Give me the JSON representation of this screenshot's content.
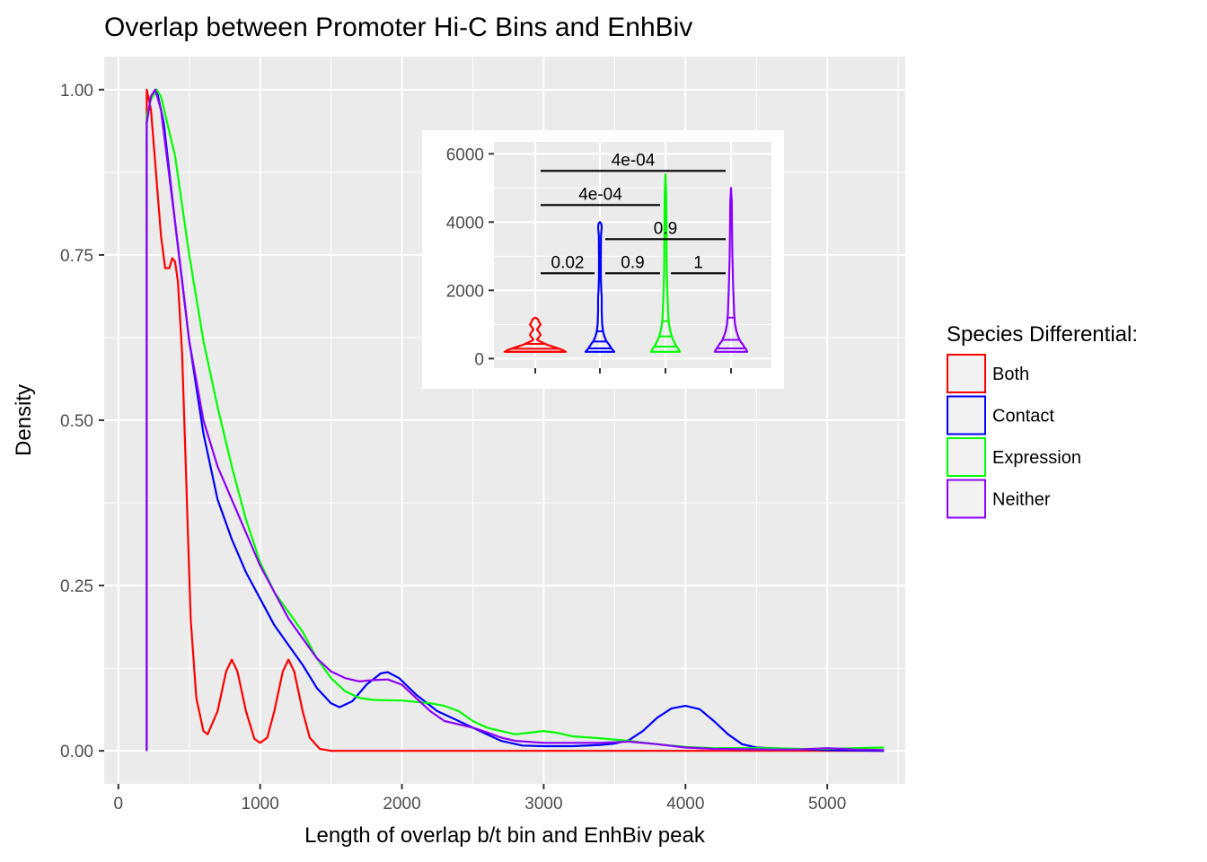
{
  "chart_data": [
    {
      "type": "line",
      "subtype": "density",
      "title": "Overlap between Promoter Hi-C Bins and EnhBiv",
      "xlabel": "Length of overlap b/t bin and EnhBiv peak",
      "ylabel": "Density",
      "xlim": [
        -100,
        5550
      ],
      "ylim": [
        -0.05,
        1.05
      ],
      "x_ticks": [
        0,
        1000,
        2000,
        3000,
        4000,
        5000
      ],
      "x_tick_labels": [
        "0",
        "1000",
        "2000",
        "3000",
        "4000",
        "5000"
      ],
      "y_ticks": [
        0,
        0.25,
        0.5,
        0.75,
        1.0
      ],
      "y_tick_labels": [
        "0.00",
        "0.25",
        "0.50",
        "0.75",
        "1.00"
      ],
      "grid": true,
      "legend": {
        "title": "Species Differential:",
        "placement": "right",
        "entries": [
          "Both",
          "Contact",
          "Expression",
          "Neither"
        ]
      },
      "series": [
        {
          "name": "Both",
          "color": "#ff0000",
          "points": [
            [
              200,
              0
            ],
            [
              200,
              1.0
            ],
            [
              230,
              0.97
            ],
            [
              300,
              0.78
            ],
            [
              330,
              0.73
            ],
            [
              360,
              0.73
            ],
            [
              380,
              0.745
            ],
            [
              400,
              0.74
            ],
            [
              420,
              0.71
            ],
            [
              450,
              0.6
            ],
            [
              480,
              0.4
            ],
            [
              510,
              0.2
            ],
            [
              550,
              0.08
            ],
            [
              600,
              0.03
            ],
            [
              630,
              0.025
            ],
            [
              700,
              0.06
            ],
            [
              760,
              0.12
            ],
            [
              800,
              0.138
            ],
            [
              840,
              0.12
            ],
            [
              900,
              0.06
            ],
            [
              960,
              0.018
            ],
            [
              1000,
              0.012
            ],
            [
              1050,
              0.02
            ],
            [
              1100,
              0.06
            ],
            [
              1160,
              0.12
            ],
            [
              1200,
              0.138
            ],
            [
              1240,
              0.12
            ],
            [
              1300,
              0.06
            ],
            [
              1350,
              0.02
            ],
            [
              1420,
              0.003
            ],
            [
              1500,
              0
            ],
            [
              5400,
              0
            ]
          ]
        },
        {
          "name": "Contact",
          "color": "#0000ff",
          "points": [
            [
              200,
              0
            ],
            [
              200,
              0.95
            ],
            [
              230,
              0.99
            ],
            [
              270,
              1.0
            ],
            [
              320,
              0.95
            ],
            [
              400,
              0.8
            ],
            [
              500,
              0.62
            ],
            [
              600,
              0.48
            ],
            [
              700,
              0.38
            ],
            [
              800,
              0.32
            ],
            [
              900,
              0.27
            ],
            [
              1000,
              0.23
            ],
            [
              1100,
              0.19
            ],
            [
              1200,
              0.16
            ],
            [
              1300,
              0.13
            ],
            [
              1400,
              0.095
            ],
            [
              1500,
              0.072
            ],
            [
              1560,
              0.066
            ],
            [
              1650,
              0.075
            ],
            [
              1750,
              0.1
            ],
            [
              1850,
              0.117
            ],
            [
              1900,
              0.119
            ],
            [
              1980,
              0.11
            ],
            [
              2100,
              0.085
            ],
            [
              2250,
              0.06
            ],
            [
              2400,
              0.045
            ],
            [
              2550,
              0.03
            ],
            [
              2700,
              0.015
            ],
            [
              2850,
              0.008
            ],
            [
              3000,
              0.007
            ],
            [
              3200,
              0.007
            ],
            [
              3400,
              0.009
            ],
            [
              3500,
              0.011
            ],
            [
              3600,
              0.016
            ],
            [
              3700,
              0.03
            ],
            [
              3800,
              0.05
            ],
            [
              3900,
              0.064
            ],
            [
              4000,
              0.068
            ],
            [
              4100,
              0.063
            ],
            [
              4200,
              0.045
            ],
            [
              4300,
              0.025
            ],
            [
              4400,
              0.01
            ],
            [
              4500,
              0.005
            ],
            [
              4600,
              0.004
            ],
            [
              5000,
              0.001
            ],
            [
              5400,
              0
            ]
          ]
        },
        {
          "name": "Expression",
          "color": "#00ff00",
          "points": [
            [
              200,
              0
            ],
            [
              200,
              0.96
            ],
            [
              230,
              0.985
            ],
            [
              270,
              1.0
            ],
            [
              300,
              0.99
            ],
            [
              400,
              0.9
            ],
            [
              500,
              0.75
            ],
            [
              600,
              0.62
            ],
            [
              700,
              0.52
            ],
            [
              800,
              0.43
            ],
            [
              900,
              0.35
            ],
            [
              1000,
              0.285
            ],
            [
              1100,
              0.24
            ],
            [
              1200,
              0.21
            ],
            [
              1300,
              0.18
            ],
            [
              1400,
              0.14
            ],
            [
              1500,
              0.11
            ],
            [
              1600,
              0.09
            ],
            [
              1700,
              0.08
            ],
            [
              1800,
              0.077
            ],
            [
              2000,
              0.076
            ],
            [
              2200,
              0.072
            ],
            [
              2300,
              0.068
            ],
            [
              2400,
              0.06
            ],
            [
              2500,
              0.045
            ],
            [
              2600,
              0.035
            ],
            [
              2800,
              0.025
            ],
            [
              3000,
              0.03
            ],
            [
              3100,
              0.027
            ],
            [
              3200,
              0.022
            ],
            [
              3400,
              0.019
            ],
            [
              3600,
              0.015
            ],
            [
              3800,
              0.01
            ],
            [
              4000,
              0.006
            ],
            [
              4200,
              0.004
            ],
            [
              4400,
              0.004
            ],
            [
              4600,
              0.004
            ],
            [
              4800,
              0.003
            ],
            [
              5000,
              0.003
            ],
            [
              5200,
              0.004
            ],
            [
              5400,
              0.005
            ]
          ]
        },
        {
          "name": "Neither",
          "color": "#8b00ff",
          "points": [
            [
              200,
              0
            ],
            [
              200,
              0.95
            ],
            [
              230,
              0.99
            ],
            [
              260,
              1.0
            ],
            [
              300,
              0.97
            ],
            [
              400,
              0.8
            ],
            [
              500,
              0.62
            ],
            [
              600,
              0.5
            ],
            [
              700,
              0.43
            ],
            [
              800,
              0.38
            ],
            [
              900,
              0.33
            ],
            [
              1000,
              0.28
            ],
            [
              1100,
              0.24
            ],
            [
              1200,
              0.2
            ],
            [
              1300,
              0.17
            ],
            [
              1400,
              0.14
            ],
            [
              1500,
              0.12
            ],
            [
              1600,
              0.11
            ],
            [
              1700,
              0.105
            ],
            [
              1800,
              0.107
            ],
            [
              1900,
              0.108
            ],
            [
              2000,
              0.1
            ],
            [
              2100,
              0.08
            ],
            [
              2200,
              0.06
            ],
            [
              2300,
              0.045
            ],
            [
              2400,
              0.04
            ],
            [
              2500,
              0.035
            ],
            [
              2600,
              0.028
            ],
            [
              2700,
              0.02
            ],
            [
              2800,
              0.015
            ],
            [
              3000,
              0.012
            ],
            [
              3200,
              0.012
            ],
            [
              3400,
              0.012
            ],
            [
              3600,
              0.014
            ],
            [
              3800,
              0.01
            ],
            [
              4000,
              0.005
            ],
            [
              4200,
              0.003
            ],
            [
              4600,
              0.002
            ],
            [
              4800,
              0.002
            ],
            [
              5000,
              0.004
            ],
            [
              5200,
              0.002
            ],
            [
              5400,
              0.001
            ]
          ]
        }
      ]
    },
    {
      "type": "violin",
      "inset": true,
      "title": "",
      "xlabel": "",
      "ylabel": "",
      "ylim": [
        -280,
        6350
      ],
      "y_ticks": [
        0,
        2000,
        4000,
        6000
      ],
      "y_tick_labels": [
        "0",
        "2000",
        "4000",
        "6000"
      ],
      "categories": [
        "Both",
        "Contact",
        "Expression",
        "Neither"
      ],
      "series": [
        {
          "name": "Both",
          "color": "#ff0000",
          "max": 1200,
          "quantiles": [
            200,
            290,
            430
          ]
        },
        {
          "name": "Contact",
          "color": "#0000ff",
          "max": 4000,
          "quantiles": [
            300,
            500,
            800
          ]
        },
        {
          "name": "Expression",
          "color": "#00ff00",
          "max": 5400,
          "quantiles": [
            350,
            650,
            1100
          ]
        },
        {
          "name": "Neither",
          "color": "#8b00ff",
          "max": 5000,
          "quantiles": [
            300,
            550,
            1200
          ]
        }
      ],
      "comparisons": [
        {
          "groups": [
            "Both",
            "Contact"
          ],
          "y": 2500,
          "label": "0.02"
        },
        {
          "groups": [
            "Contact",
            "Expression"
          ],
          "y": 2500,
          "label": "0.9"
        },
        {
          "groups": [
            "Expression",
            "Neither"
          ],
          "y": 2500,
          "label": "1"
        },
        {
          "groups": [
            "Contact",
            "Neither"
          ],
          "y": 3500,
          "label": "0.9"
        },
        {
          "groups": [
            "Both",
            "Expression"
          ],
          "y": 4500,
          "label": "4e-04"
        },
        {
          "groups": [
            "Both",
            "Neither"
          ],
          "y": 5500,
          "label": "4e-04"
        }
      ]
    }
  ]
}
